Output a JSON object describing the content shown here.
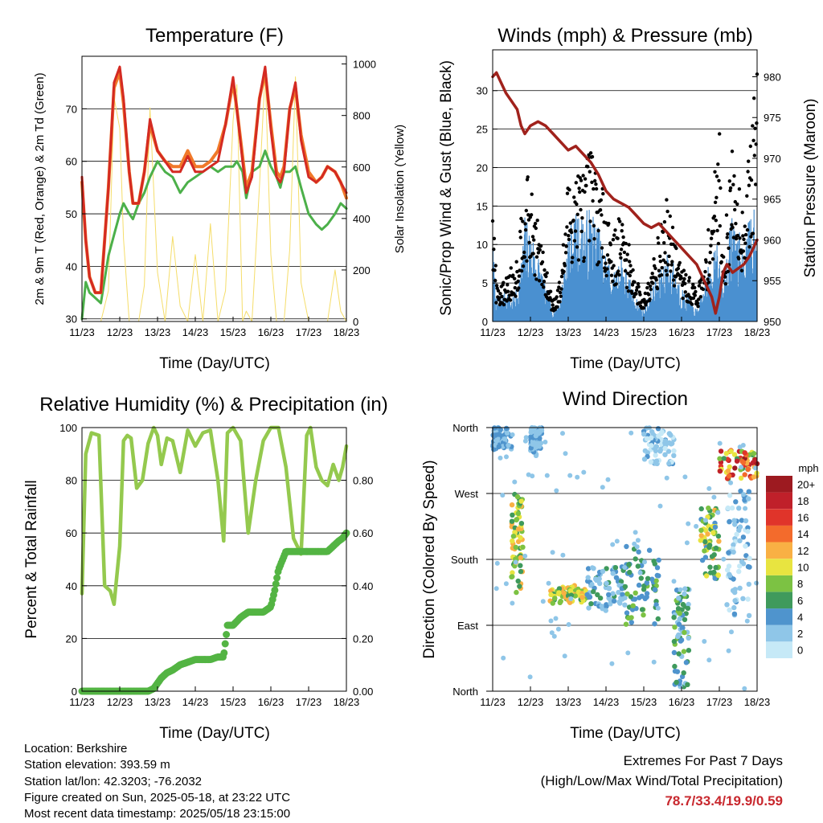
{
  "x_tick_labels": [
    "11/23",
    "12/23",
    "13/23",
    "14/23",
    "15/23",
    "16/23",
    "17/23",
    "18/23"
  ],
  "panels": {
    "temperature": {
      "title": "Temperature (F)",
      "xlabel": "Time (Day/UTC)",
      "ylabel_left": "2m & 9m T (Red, Orange) & 2m Td (Green)",
      "ylabel_right": "Solar Insolation (Yellow)",
      "left_ticks": [
        "30",
        "40",
        "50",
        "60",
        "70"
      ],
      "right_ticks": [
        "0",
        "200",
        "400",
        "600",
        "800",
        "1000"
      ]
    },
    "winds": {
      "title": "Winds (mph) & Pressure (mb)",
      "xlabel": "Time (Day/UTC)",
      "ylabel_left": "Sonic/Prop Wind & Gust (Blue, Black)",
      "ylabel_right": "Station Pressure (Maroon)",
      "left_ticks": [
        "0",
        "5",
        "10",
        "15",
        "20",
        "25",
        "30"
      ],
      "right_ticks": [
        "950",
        "955",
        "960",
        "965",
        "970",
        "975",
        "980"
      ]
    },
    "humidity": {
      "title": "Relative Humidity (%) & Precipitation (in)",
      "xlabel": "Time (Day/UTC)",
      "ylabel_left": "Percent & Total Rainfall",
      "left_ticks": [
        "0",
        "20",
        "40",
        "60",
        "80",
        "100"
      ],
      "right_ticks": [
        "0.00",
        "0.20",
        "0.40",
        "0.60",
        "0.80"
      ]
    },
    "direction": {
      "title": "Wind Direction",
      "xlabel": "Time (Day/UTC)",
      "ylabel_left": "Direction (Colored By Speed)",
      "left_ticks": [
        "North",
        "East",
        "South",
        "West",
        "North"
      ],
      "legend_title": "mph",
      "legend_labels": [
        "0",
        "2",
        "4",
        "6",
        "8",
        "10",
        "12",
        "14",
        "16",
        "18",
        "20+"
      ],
      "legend_colors": [
        "#c6e9f7",
        "#8fc6e8",
        "#4f94cd",
        "#3f9a5c",
        "#7cc243",
        "#e8e440",
        "#f9b044",
        "#f36b2c",
        "#e0342a",
        "#c0202a",
        "#9d1a20"
      ]
    }
  },
  "chart_data": [
    {
      "type": "line",
      "panel": "temperature",
      "x": [
        0,
        0.1,
        0.2,
        0.35,
        0.5,
        0.7,
        0.85,
        1,
        1.1,
        1.25,
        1.35,
        1.5,
        1.65,
        1.8,
        2,
        2.2,
        2.4,
        2.6,
        2.8,
        3,
        3.2,
        3.4,
        3.6,
        3.8,
        4,
        4.1,
        4.25,
        4.35,
        4.5,
        4.7,
        4.85,
        5,
        5.15,
        5.25,
        5.35,
        5.5,
        5.65,
        5.8,
        6,
        6.2,
        6.35,
        6.5,
        6.7,
        6.85,
        7
      ],
      "xlim": [
        0,
        7
      ],
      "ylim_left": [
        29.5,
        80
      ],
      "ylim_right": [
        0,
        1030
      ],
      "series": [
        {
          "name": "2m T",
          "color": "#d42a22",
          "values": [
            57,
            45,
            38,
            35,
            35,
            55,
            75,
            78,
            72,
            58,
            52,
            52,
            58,
            68,
            62,
            60,
            58,
            58,
            61,
            58,
            58,
            59,
            60,
            67,
            76,
            70,
            60,
            54,
            57,
            72,
            78,
            66,
            57,
            56,
            58,
            70,
            75,
            64,
            57,
            56,
            57,
            59,
            58,
            56,
            54
          ]
        },
        {
          "name": "9m T",
          "color": "#f0792a",
          "values": [
            56,
            45,
            38,
            35,
            35,
            55,
            74,
            77,
            71,
            58,
            52,
            52,
            58,
            67,
            62,
            60,
            59,
            59,
            62,
            59,
            59,
            60,
            62,
            67,
            75,
            70,
            61,
            55,
            58,
            72,
            77,
            67,
            58,
            57,
            59,
            70,
            74,
            65,
            58,
            56,
            57,
            59,
            58,
            56,
            53
          ]
        },
        {
          "name": "2m Td",
          "color": "#4cb04a",
          "values": [
            30,
            37,
            35,
            34,
            33,
            42,
            46,
            50,
            52,
            50,
            49,
            52,
            54,
            57,
            60,
            58,
            57,
            54,
            56,
            57,
            58,
            59,
            58,
            59,
            59,
            60,
            58,
            53,
            58,
            59,
            62,
            59,
            57,
            55,
            58,
            58,
            59,
            55,
            50,
            48,
            47,
            48,
            50,
            52,
            51
          ]
        },
        {
          "name": "Solar Insolation",
          "color": "#f5dd6a",
          "values": [
            0,
            0,
            0,
            0,
            0,
            120,
            870,
            750,
            320,
            0,
            0,
            0,
            140,
            830,
            190,
            0,
            330,
            60,
            0,
            260,
            0,
            380,
            0,
            120,
            780,
            920,
            0,
            40,
            0,
            530,
            970,
            260,
            0,
            0,
            0,
            280,
            950,
            150,
            0,
            0,
            0,
            0,
            200,
            40,
            0
          ]
        }
      ]
    },
    {
      "type": "line",
      "panel": "winds",
      "x": [
        0,
        0.1,
        0.2,
        0.35,
        0.5,
        0.65,
        0.75,
        0.85,
        1,
        1.2,
        1.4,
        1.6,
        1.8,
        2,
        2.2,
        2.4,
        2.6,
        2.8,
        3,
        3.2,
        3.4,
        3.6,
        3.8,
        4,
        4.2,
        4.4,
        4.6,
        4.8,
        5,
        5.2,
        5.4,
        5.6,
        5.8,
        5.9,
        6,
        6.1,
        6.2,
        6.35,
        6.5,
        6.65,
        6.8,
        6.9,
        7
      ],
      "xlim": [
        0,
        7
      ],
      "ylim_left": [
        0,
        35.3
      ],
      "ylim_right": [
        950,
        983.3
      ],
      "series": [
        {
          "name": "Sonic/Prop Wind",
          "color": "#4a90d0",
          "values": [
            7,
            2,
            2,
            3,
            2,
            3,
            5,
            9,
            8,
            6,
            3,
            1,
            2,
            8,
            9,
            9,
            10,
            8,
            6,
            4,
            6,
            4,
            2,
            1,
            3,
            4,
            6,
            5,
            3,
            2,
            1,
            3,
            6,
            8,
            5,
            3,
            6,
            10,
            8,
            6,
            9,
            10,
            13
          ]
        },
        {
          "name": "Gust",
          "color": "#000000",
          "values": [
            10,
            4,
            3,
            4,
            5,
            6,
            10,
            14,
            12,
            9,
            5,
            2,
            4,
            13,
            14,
            14,
            16,
            13,
            11,
            8,
            10,
            7,
            4,
            2,
            6,
            8,
            11,
            8,
            5,
            4,
            3,
            5,
            11,
            14,
            18,
            6,
            10,
            16,
            13,
            11,
            16,
            19,
            25
          ]
        },
        {
          "name": "Station Pressure",
          "color": "#a0221c",
          "values": [
            980,
            980.5,
            979.5,
            978,
            977,
            976,
            974,
            973,
            974,
            974.5,
            974,
            973,
            972,
            971,
            971.5,
            970.5,
            969.5,
            968,
            966,
            965,
            964.5,
            964,
            963,
            962,
            961.5,
            962,
            961,
            960,
            959,
            958,
            957,
            955,
            953,
            951,
            953,
            956,
            957,
            956,
            956.5,
            957,
            958,
            959,
            960
          ]
        }
      ]
    },
    {
      "type": "line",
      "panel": "humidity",
      "x": [
        0,
        0.1,
        0.25,
        0.45,
        0.6,
        0.75,
        0.85,
        1,
        1.1,
        1.2,
        1.3,
        1.45,
        1.6,
        1.75,
        1.9,
        2,
        2.1,
        2.25,
        2.4,
        2.6,
        2.8,
        3,
        3.2,
        3.4,
        3.6,
        3.75,
        3.85,
        4,
        4.2,
        4.4,
        4.6,
        4.8,
        5,
        5.1,
        5.2,
        5.4,
        5.6,
        5.8,
        5.95,
        6.05,
        6.2,
        6.35,
        6.5,
        6.65,
        6.8,
        6.9,
        7
      ],
      "xlim": [
        0,
        7
      ],
      "ylim_left": [
        0,
        100
      ],
      "ylim_right": [
        0,
        1.0
      ],
      "series": [
        {
          "name": "Relative Humidity",
          "color": "#94c94e",
          "values": [
            37,
            90,
            98,
            97,
            40,
            38,
            33,
            55,
            95,
            97,
            96,
            77,
            80,
            94,
            100,
            97,
            86,
            96,
            95,
            83,
            99,
            93,
            98,
            99,
            80,
            57,
            98,
            100,
            95,
            60,
            80,
            95,
            100,
            100,
            100,
            85,
            58,
            52,
            97,
            100,
            85,
            80,
            78,
            86,
            80,
            85,
            93
          ]
        },
        {
          "name": "Total Rainfall",
          "color": "#53b443",
          "values": [
            0,
            0,
            0,
            0,
            0,
            0,
            0,
            0,
            0,
            0,
            0,
            0,
            0,
            0,
            0.01,
            0.03,
            0.05,
            0.07,
            0.08,
            0.1,
            0.11,
            0.12,
            0.12,
            0.12,
            0.13,
            0.13,
            0.25,
            0.25,
            0.28,
            0.3,
            0.3,
            0.3,
            0.32,
            0.38,
            0.46,
            0.53,
            0.53,
            0.53,
            0.53,
            0.53,
            0.53,
            0.53,
            0.53,
            0.55,
            0.57,
            0.58,
            0.6
          ]
        }
      ]
    },
    {
      "type": "scatter",
      "panel": "direction",
      "xlim": [
        0,
        7
      ],
      "ylim": [
        0,
        360
      ],
      "groups": [
        {
          "x": [
            0,
            0.5
          ],
          "y": [
            330,
            360
          ],
          "speed": [
            1,
            5
          ]
        },
        {
          "x": [
            0.5,
            0.8
          ],
          "y": [
            130,
            270
          ],
          "speed": [
            5,
            12
          ]
        },
        {
          "x": [
            1,
            1.3
          ],
          "y": [
            320,
            360
          ],
          "speed": [
            1,
            4
          ]
        },
        {
          "x": [
            1.5,
            2.5
          ],
          "y": [
            120,
            145
          ],
          "speed": [
            6,
            12
          ]
        },
        {
          "x": [
            2.5,
            3.5
          ],
          "y": [
            110,
            170
          ],
          "speed": [
            1,
            6
          ]
        },
        {
          "x": [
            3.5,
            4.4
          ],
          "y": [
            90,
            200
          ],
          "speed": [
            3,
            8
          ]
        },
        {
          "x": [
            4,
            4.8
          ],
          "y": [
            310,
            360
          ],
          "speed": [
            0,
            4
          ]
        },
        {
          "x": [
            4.8,
            5.2
          ],
          "y": [
            0,
            140
          ],
          "speed": [
            1,
            8
          ]
        },
        {
          "x": [
            5.5,
            6
          ],
          "y": [
            150,
            250
          ],
          "speed": [
            4,
            12
          ]
        },
        {
          "x": [
            6,
            7
          ],
          "y": [
            290,
            330
          ],
          "speed": [
            5,
            20
          ]
        },
        {
          "x": [
            6.2,
            6.8
          ],
          "y": [
            100,
            280
          ],
          "speed": [
            0,
            4
          ]
        }
      ]
    }
  ],
  "footer": {
    "lines": [
      "Location: Berkshire",
      "Station elevation: 393.59 m",
      "Station lat/lon: 42.3203; -76.2032",
      "Figure created on Sun, 2025-05-18, at 23:22 UTC",
      "Most recent data timestamp: 2025/05/18 23:15:00"
    ]
  },
  "extremes": {
    "line1": "Extremes For Past 7 Days",
    "line2": "(High/Low/Max Wind/Total Precipitation)",
    "values": "78.7/33.4/19.9/0.59"
  }
}
